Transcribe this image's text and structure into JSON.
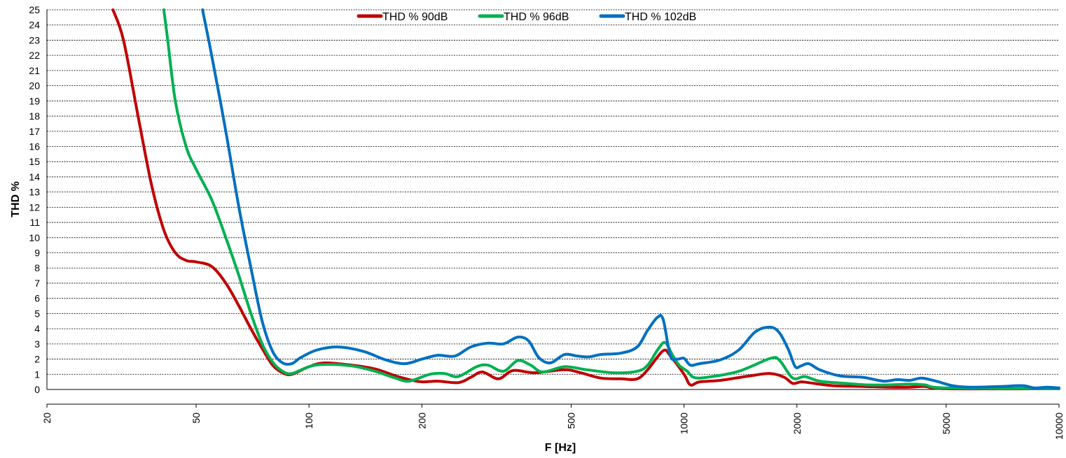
{
  "chart_data": {
    "type": "line",
    "xlabel": "F [Hz]",
    "ylabel": "THD %",
    "xscale": "log",
    "xlim": [
      20,
      10000
    ],
    "ylim": [
      0,
      25
    ],
    "xticks": [
      20,
      50,
      100,
      200,
      500,
      1000,
      2000,
      5000,
      10000
    ],
    "yticks": [
      0,
      1,
      2,
      3,
      4,
      5,
      6,
      7,
      8,
      9,
      10,
      11,
      12,
      13,
      14,
      15,
      16,
      17,
      18,
      19,
      20,
      21,
      22,
      23,
      24,
      25
    ],
    "grid": "horizontal",
    "legend_position": "top",
    "series": [
      {
        "name": "THD % 90dB",
        "color": "#c00000",
        "points": [
          [
            30,
            25
          ],
          [
            32,
            23
          ],
          [
            35,
            18
          ],
          [
            38,
            13.5
          ],
          [
            41,
            10.5
          ],
          [
            44,
            9
          ],
          [
            47,
            8.5
          ],
          [
            50,
            8.4
          ],
          [
            55,
            8.1
          ],
          [
            60,
            7
          ],
          [
            65,
            5.5
          ],
          [
            70,
            4
          ],
          [
            75,
            2.7
          ],
          [
            80,
            1.6
          ],
          [
            85,
            1.1
          ],
          [
            90,
            1
          ],
          [
            100,
            1.5
          ],
          [
            110,
            1.75
          ],
          [
            130,
            1.6
          ],
          [
            150,
            1.35
          ],
          [
            170,
            0.9
          ],
          [
            185,
            0.65
          ],
          [
            200,
            0.5
          ],
          [
            220,
            0.55
          ],
          [
            250,
            0.45
          ],
          [
            270,
            0.8
          ],
          [
            290,
            1.15
          ],
          [
            320,
            0.7
          ],
          [
            350,
            1.25
          ],
          [
            400,
            1.1
          ],
          [
            480,
            1.3
          ],
          [
            530,
            1.1
          ],
          [
            600,
            0.75
          ],
          [
            680,
            0.7
          ],
          [
            750,
            0.7
          ],
          [
            800,
            1.3
          ],
          [
            880,
            2.55
          ],
          [
            920,
            2.2
          ],
          [
            1000,
            1
          ],
          [
            1040,
            0.3
          ],
          [
            1100,
            0.5
          ],
          [
            1250,
            0.6
          ],
          [
            1500,
            0.9
          ],
          [
            1700,
            1.05
          ],
          [
            1850,
            0.8
          ],
          [
            1950,
            0.4
          ],
          [
            2050,
            0.5
          ],
          [
            2150,
            0.45
          ],
          [
            2500,
            0.25
          ],
          [
            3000,
            0.2
          ],
          [
            3500,
            0.15
          ],
          [
            4000,
            0.15
          ],
          [
            4400,
            0.2
          ],
          [
            5000,
            0.05
          ],
          [
            10000,
            0.05
          ]
        ]
      },
      {
        "name": "THD % 96dB",
        "color": "#00b050",
        "points": [
          [
            41,
            25
          ],
          [
            42,
            23
          ],
          [
            44,
            19
          ],
          [
            47,
            16
          ],
          [
            50,
            14.5
          ],
          [
            55,
            12.5
          ],
          [
            60,
            10
          ],
          [
            65,
            7.5
          ],
          [
            70,
            5
          ],
          [
            75,
            3
          ],
          [
            80,
            1.8
          ],
          [
            85,
            1.2
          ],
          [
            90,
            1.05
          ],
          [
            100,
            1.5
          ],
          [
            110,
            1.65
          ],
          [
            130,
            1.55
          ],
          [
            150,
            1.2
          ],
          [
            170,
            0.75
          ],
          [
            185,
            0.55
          ],
          [
            210,
            1
          ],
          [
            230,
            1.05
          ],
          [
            250,
            0.85
          ],
          [
            280,
            1.5
          ],
          [
            300,
            1.6
          ],
          [
            330,
            1.2
          ],
          [
            360,
            1.9
          ],
          [
            390,
            1.6
          ],
          [
            420,
            1.15
          ],
          [
            480,
            1.5
          ],
          [
            550,
            1.3
          ],
          [
            650,
            1.1
          ],
          [
            750,
            1.2
          ],
          [
            800,
            1.6
          ],
          [
            850,
            2.6
          ],
          [
            890,
            3.1
          ],
          [
            930,
            2.3
          ],
          [
            970,
            1.6
          ],
          [
            1020,
            1.2
          ],
          [
            1060,
            0.8
          ],
          [
            1150,
            0.8
          ],
          [
            1400,
            1.2
          ],
          [
            1700,
            2.05
          ],
          [
            1800,
            1.9
          ],
          [
            1950,
            0.75
          ],
          [
            2100,
            0.85
          ],
          [
            2300,
            0.55
          ],
          [
            2700,
            0.4
          ],
          [
            3100,
            0.3
          ],
          [
            3500,
            0.3
          ],
          [
            4000,
            0.35
          ],
          [
            4400,
            0.3
          ],
          [
            5000,
            0.1
          ],
          [
            10000,
            0.05
          ]
        ]
      },
      {
        "name": "THD % 102dB",
        "color": "#0070c0",
        "points": [
          [
            52,
            25
          ],
          [
            55,
            22
          ],
          [
            60,
            17
          ],
          [
            65,
            12
          ],
          [
            70,
            8
          ],
          [
            75,
            4.5
          ],
          [
            80,
            2.5
          ],
          [
            85,
            1.75
          ],
          [
            90,
            1.7
          ],
          [
            95,
            2.1
          ],
          [
            105,
            2.6
          ],
          [
            120,
            2.8
          ],
          [
            140,
            2.5
          ],
          [
            160,
            1.95
          ],
          [
            180,
            1.7
          ],
          [
            200,
            2
          ],
          [
            220,
            2.25
          ],
          [
            245,
            2.2
          ],
          [
            270,
            2.8
          ],
          [
            300,
            3.05
          ],
          [
            330,
            3
          ],
          [
            360,
            3.45
          ],
          [
            385,
            3.2
          ],
          [
            410,
            2.1
          ],
          [
            440,
            1.75
          ],
          [
            480,
            2.3
          ],
          [
            520,
            2.2
          ],
          [
            560,
            2.15
          ],
          [
            600,
            2.3
          ],
          [
            680,
            2.4
          ],
          [
            750,
            2.8
          ],
          [
            800,
            3.9
          ],
          [
            850,
            4.75
          ],
          [
            880,
            4.6
          ],
          [
            920,
            2.2
          ],
          [
            960,
            2
          ],
          [
            1000,
            2.05
          ],
          [
            1040,
            1.6
          ],
          [
            1100,
            1.7
          ],
          [
            1250,
            1.95
          ],
          [
            1400,
            2.6
          ],
          [
            1550,
            3.8
          ],
          [
            1700,
            4.1
          ],
          [
            1800,
            3.7
          ],
          [
            1900,
            2.6
          ],
          [
            1980,
            1.5
          ],
          [
            2050,
            1.55
          ],
          [
            2150,
            1.7
          ],
          [
            2300,
            1.3
          ],
          [
            2600,
            0.9
          ],
          [
            3000,
            0.8
          ],
          [
            3400,
            0.55
          ],
          [
            3700,
            0.65
          ],
          [
            4000,
            0.6
          ],
          [
            4300,
            0.75
          ],
          [
            4700,
            0.55
          ],
          [
            5200,
            0.25
          ],
          [
            5800,
            0.15
          ],
          [
            7000,
            0.2
          ],
          [
            8000,
            0.25
          ],
          [
            8600,
            0.1
          ],
          [
            9300,
            0.15
          ],
          [
            10000,
            0.1
          ]
        ]
      }
    ]
  }
}
